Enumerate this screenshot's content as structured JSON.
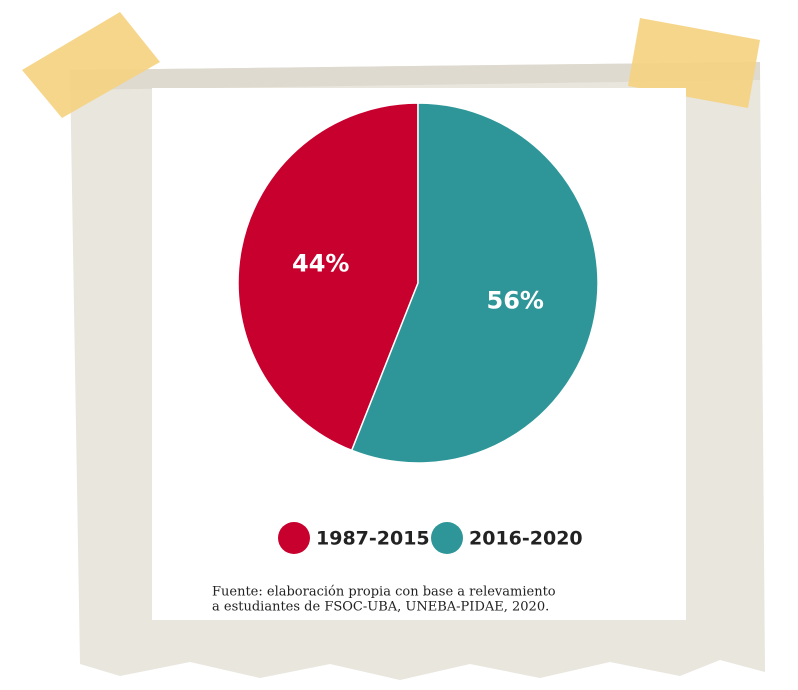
{
  "chart_data": {
    "type": "pie",
    "categories": [
      "1987-2015",
      "2016-2020"
    ],
    "values": [
      44,
      56
    ],
    "value_labels": [
      "44%",
      "56%"
    ],
    "colors": [
      "#c8002d",
      "#2e9698"
    ],
    "note": [
      "Fuente: elaboración propia con base a relevamiento",
      "a estudiantes de FSOC-UBA, UNEBA-PIDAE, 2020."
    ]
  }
}
